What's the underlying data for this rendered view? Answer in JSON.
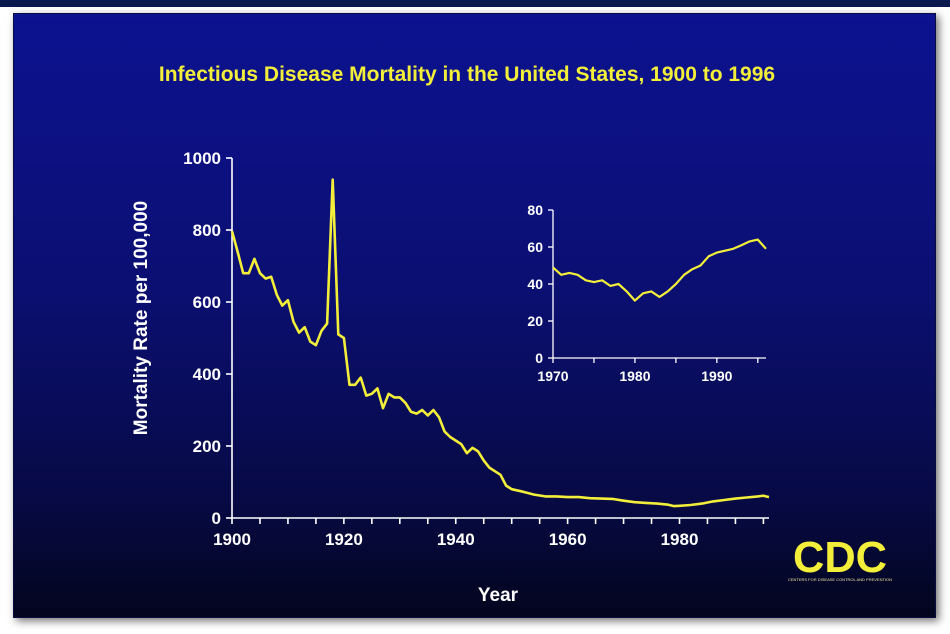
{
  "chart_data": [
    {
      "type": "line",
      "title": "Infectious Disease Mortality in the United States, 1900 to 1996",
      "xlabel": "Year",
      "ylabel": "Mortality Rate per 100,000",
      "xlim": [
        1900,
        1996
      ],
      "ylim": [
        0,
        1000
      ],
      "xticks": [
        1900,
        1920,
        1940,
        1960,
        1980
      ],
      "yticks": [
        0,
        200,
        400,
        600,
        800,
        1000
      ],
      "line_color": "#f2ee3a",
      "grid": false,
      "series": [
        {
          "x": [
            1900,
            1901,
            1902,
            1903,
            1904,
            1905,
            1906,
            1907,
            1908,
            1909,
            1910,
            1911,
            1912,
            1913,
            1914,
            1915,
            1916,
            1917,
            1918,
            1919,
            1920,
            1921,
            1922,
            1923,
            1924,
            1925,
            1926,
            1927,
            1928,
            1929,
            1930,
            1931,
            1932,
            1933,
            1934,
            1935,
            1936,
            1937,
            1938,
            1939,
            1940,
            1941,
            1942,
            1943,
            1944,
            1945,
            1946,
            1947,
            1948,
            1949,
            1950,
            1952,
            1954,
            1956,
            1958,
            1960,
            1962,
            1964,
            1966,
            1968,
            1970,
            1972,
            1974,
            1976,
            1978,
            1979,
            1980,
            1982,
            1984,
            1986,
            1988,
            1990,
            1992,
            1994,
            1995,
            1996
          ],
          "y": [
            797,
            740,
            680,
            680,
            720,
            680,
            665,
            670,
            620,
            590,
            605,
            545,
            515,
            530,
            490,
            480,
            520,
            540,
            940,
            510,
            500,
            370,
            370,
            390,
            340,
            345,
            360,
            305,
            345,
            335,
            335,
            320,
            295,
            290,
            300,
            285,
            300,
            280,
            240,
            225,
            215,
            205,
            180,
            195,
            185,
            160,
            140,
            130,
            120,
            90,
            80,
            73,
            65,
            60,
            60,
            58,
            58,
            55,
            54,
            53,
            48,
            44,
            42,
            40,
            37,
            33,
            34,
            36,
            40,
            46,
            50,
            54,
            57,
            60,
            62,
            58
          ]
        }
      ]
    },
    {
      "type": "line",
      "title": "",
      "xlabel": "",
      "ylabel": "",
      "xlim": [
        1970,
        1996
      ],
      "ylim": [
        0,
        80
      ],
      "xticks": [
        1970,
        1980,
        1990
      ],
      "yticks": [
        0,
        20,
        40,
        60,
        80
      ],
      "line_color": "#f2ee3a",
      "grid": false,
      "series": [
        {
          "x": [
            1970,
            1971,
            1972,
            1973,
            1974,
            1975,
            1976,
            1977,
            1978,
            1979,
            1980,
            1981,
            1982,
            1983,
            1984,
            1985,
            1986,
            1987,
            1988,
            1989,
            1990,
            1991,
            1992,
            1993,
            1994,
            1995,
            1996
          ],
          "y": [
            49,
            45,
            46,
            45,
            42,
            41,
            42,
            39,
            40,
            36,
            31,
            35,
            36,
            33,
            36,
            40,
            45,
            48,
            50,
            55,
            57,
            58,
            59,
            61,
            63,
            64,
            59
          ]
        }
      ]
    }
  ],
  "logo": {
    "text": "CDC",
    "subtitle": "CENTERS FOR DISEASE CONTROL AND PREVENTION"
  }
}
